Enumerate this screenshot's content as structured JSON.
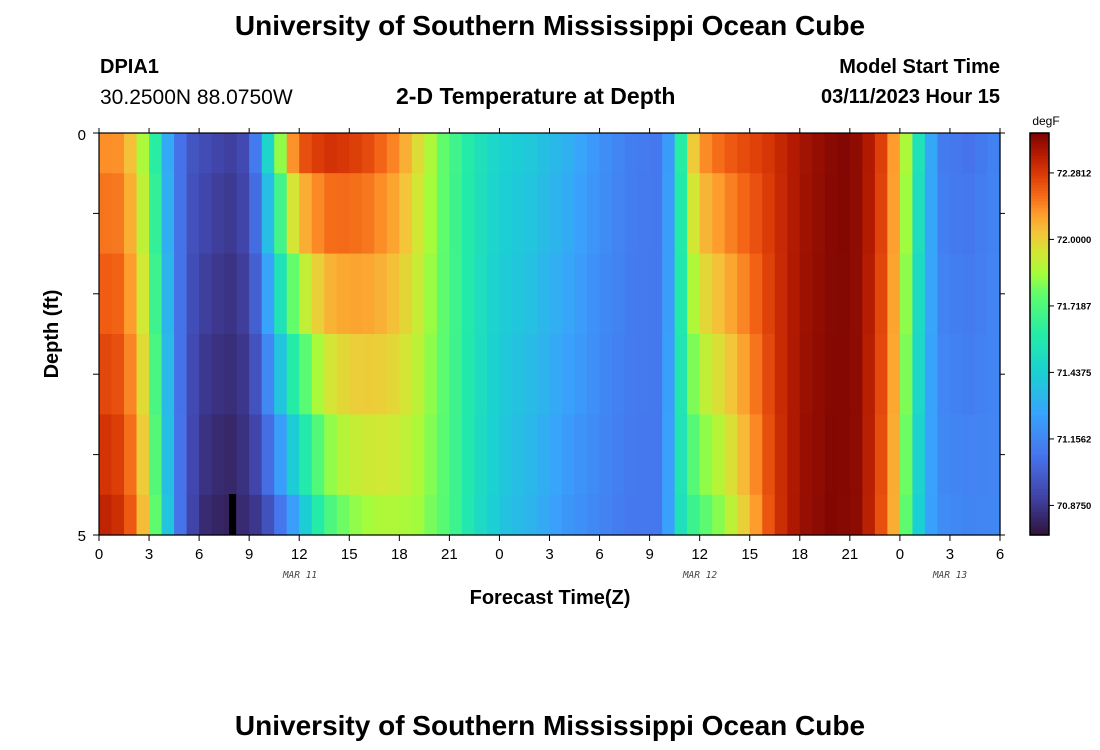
{
  "header": {
    "title": "University of Southern Mississippi Ocean Cube",
    "station": "DPIA1",
    "coords": "30.2500N  88.0750W",
    "plot_title": "2-D Temperature at Depth",
    "model_start_label": "Model Start Time",
    "model_start_value": "03/11/2023 Hour 15"
  },
  "footer": {
    "title": "University of Southern Mississippi Ocean Cube"
  },
  "chart_data": {
    "type": "heatmap",
    "title": "2-D Temperature at Depth",
    "xlabel": "Forecast Time(Z)",
    "ylabel": "Depth (ft)",
    "x_tick_labels": [
      "0",
      "3",
      "6",
      "9",
      "12",
      "15",
      "18",
      "21",
      "0",
      "3",
      "6",
      "9",
      "12",
      "15",
      "18",
      "21",
      "0",
      "3",
      "6"
    ],
    "y_tick_labels": [
      "0",
      "5"
    ],
    "ylim": [
      0,
      5
    ],
    "x_hours": [
      0,
      54
    ],
    "date_labels": [
      {
        "text": "MAR 11",
        "hour": 12
      },
      {
        "text": "MAR 12",
        "hour": 36
      },
      {
        "text": "MAR 13",
        "hour": 51
      }
    ],
    "colorbar": {
      "unit": "degF",
      "ticks": [
        "72.2812",
        "72.0000",
        "71.7187",
        "71.4375",
        "71.1562",
        "70.8750"
      ],
      "range": [
        70.75,
        72.45
      ]
    },
    "depth_bands": [
      {
        "from": 0,
        "to": 0.5
      },
      {
        "from": 0.5,
        "to": 1.5
      },
      {
        "from": 1.5,
        "to": 2.5
      },
      {
        "from": 2.5,
        "to": 3.5
      },
      {
        "from": 3.5,
        "to": 4.5
      },
      {
        "from": 4.5,
        "to": 5
      }
    ],
    "temperature_profile_top": [
      [
        0,
        72.12
      ],
      [
        1,
        72.14
      ],
      [
        2,
        72.02
      ],
      [
        3,
        71.78
      ],
      [
        4,
        71.33
      ],
      [
        4.6,
        71.12
      ],
      [
        5.5,
        70.98
      ],
      [
        7,
        70.92
      ],
      [
        8,
        70.9
      ],
      [
        9,
        70.96
      ],
      [
        9.6,
        71.2
      ],
      [
        10.2,
        71.5
      ],
      [
        10.8,
        71.8
      ],
      [
        11.3,
        72.0
      ],
      [
        11.7,
        72.15
      ],
      [
        12.5,
        72.25
      ],
      [
        14,
        72.3
      ],
      [
        16,
        72.25
      ],
      [
        18,
        72.12
      ],
      [
        19.5,
        71.92
      ],
      [
        21,
        71.72
      ],
      [
        22.5,
        71.55
      ],
      [
        24,
        71.45
      ],
      [
        26,
        71.4
      ],
      [
        28,
        71.32
      ],
      [
        30,
        71.2
      ],
      [
        32,
        71.12
      ],
      [
        33.5,
        71.1
      ],
      [
        34.2,
        71.25
      ],
      [
        34.7,
        71.5
      ],
      [
        35.2,
        71.8
      ],
      [
        35.7,
        72.05
      ],
      [
        36.5,
        72.15
      ],
      [
        38,
        72.22
      ],
      [
        40,
        72.28
      ],
      [
        42,
        72.38
      ],
      [
        44,
        72.43
      ],
      [
        45,
        72.44
      ],
      [
        46,
        72.38
      ],
      [
        47,
        72.25
      ],
      [
        48,
        72.02
      ],
      [
        48.6,
        71.78
      ],
      [
        49.2,
        71.5
      ],
      [
        49.8,
        71.3
      ],
      [
        50.5,
        71.12
      ],
      [
        52,
        71.08
      ],
      [
        54,
        71.15
      ]
    ],
    "temperature_profile_bottom": [
      [
        0,
        72.34
      ],
      [
        1,
        72.32
      ],
      [
        2,
        72.2
      ],
      [
        3,
        71.95
      ],
      [
        3.8,
        71.55
      ],
      [
        4.5,
        71.2
      ],
      [
        5.3,
        70.95
      ],
      [
        6.5,
        70.82
      ],
      [
        8,
        70.8
      ],
      [
        9.5,
        70.88
      ],
      [
        10.5,
        71.02
      ],
      [
        11.5,
        71.22
      ],
      [
        12.5,
        71.45
      ],
      [
        13.5,
        71.68
      ],
      [
        15,
        71.82
      ],
      [
        17,
        71.88
      ],
      [
        19,
        71.86
      ],
      [
        21,
        71.72
      ],
      [
        22.5,
        71.52
      ],
      [
        24,
        71.4
      ],
      [
        26,
        71.32
      ],
      [
        28,
        71.22
      ],
      [
        30,
        71.15
      ],
      [
        32,
        71.1
      ],
      [
        33.5,
        71.1
      ],
      [
        34.3,
        71.3
      ],
      [
        35,
        71.58
      ],
      [
        36,
        71.72
      ],
      [
        37.5,
        71.85
      ],
      [
        39,
        72.05
      ],
      [
        40.5,
        72.28
      ],
      [
        42,
        72.4
      ],
      [
        44,
        72.44
      ],
      [
        45.5,
        72.42
      ],
      [
        46.5,
        72.3
      ],
      [
        47.5,
        72.12
      ],
      [
        48.2,
        71.85
      ],
      [
        48.8,
        71.55
      ],
      [
        49.5,
        71.3
      ],
      [
        50.5,
        71.18
      ],
      [
        52,
        71.15
      ],
      [
        54,
        71.16
      ]
    ]
  }
}
